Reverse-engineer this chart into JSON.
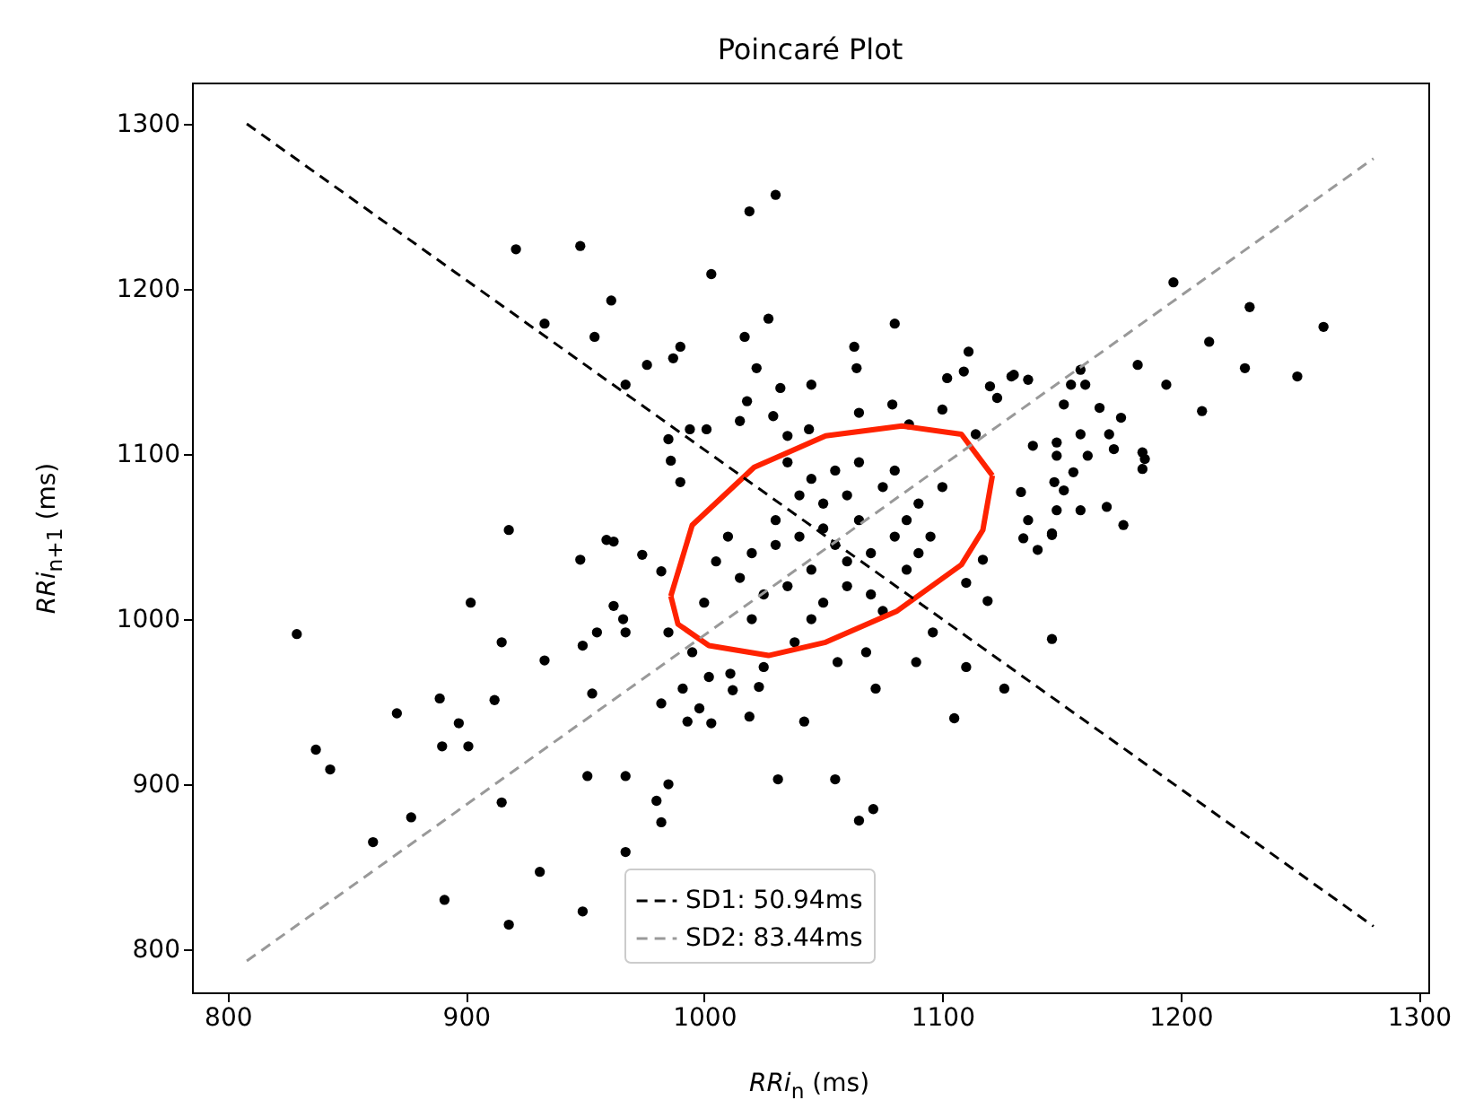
{
  "chart_data": {
    "type": "scatter",
    "title": "Poincaré Plot",
    "xlabel": "RRi$_{n}$ (ms)",
    "ylabel": "RRi$_{n+1}$ (ms)",
    "xlim": [
      785,
      1304
    ],
    "ylim": [
      774,
      1325
    ],
    "xticks": [
      800,
      900,
      1000,
      1100,
      1200,
      1300
    ],
    "yticks": [
      800,
      900,
      1000,
      1100,
      1200,
      1300
    ],
    "legend": "bottom",
    "series": [
      {
        "color": "#000000",
        "marker": "circle",
        "x": [
          829,
          837,
          843,
          861,
          877,
          871,
          889,
          897,
          890,
          901,
          912,
          915,
          902,
          933,
          949,
          955,
          948,
          959,
          918,
          953,
          951,
          915,
          931,
          891,
          918,
          949,
          921,
          948,
          933,
          954,
          961,
          1030,
          1019,
          1003,
          1027,
          1017,
          990,
          987,
          976,
          967,
          1080,
          1063,
          1064,
          1022,
          1045,
          1032,
          1111,
          1109,
          1102,
          1129,
          1120,
          1123,
          1100,
          1079,
          1065,
          1018,
          1015,
          1029,
          1001,
          994,
          985,
          986,
          990,
          1044,
          1035,
          1114,
          1086,
          1197,
          1229,
          1260,
          1212,
          1227,
          1249,
          1182,
          1194,
          1209,
          1158,
          1154,
          1160,
          1136,
          1130,
          1151,
          1166,
          1175,
          1170,
          1158,
          1138,
          1148,
          1148,
          1161,
          1172,
          1184,
          1185,
          1184,
          1155,
          1147,
          1151,
          1148,
          1158,
          1169,
          1176,
          1146,
          1136,
          1133,
          1146,
          1140,
          1134,
          1146,
          967,
          985,
          980,
          982,
          967,
          1031,
          1055,
          1071,
          1065,
          1042,
          1019,
          1003,
          993,
          998,
          982,
          991,
          1012,
          1023,
          1002,
          1011,
          1072,
          1105,
          1126,
          1110,
          1089,
          1068,
          1056,
          1038,
          1025,
          995,
          967,
          962,
          982,
          974,
          962,
          966,
          985,
          1119,
          1117,
          1096,
          1110,
          1020,
          1030,
          1040,
          1045,
          1050,
          1055,
          1060,
          1065,
          1070,
          1075,
          1080,
          1085,
          1090,
          1035,
          1025,
          1015,
          1045,
          1055,
          1065,
          1040,
          1050,
          1070,
          1080,
          1095,
          1100,
          1030,
          1010,
          1060,
          1075,
          1045,
          1035,
          1085,
          1020,
          1000,
          1005,
          1090,
          1060,
          1050
        ],
        "values": [
          991,
          921,
          909,
          865,
          880,
          943,
          952,
          937,
          923,
          923,
          951,
          986,
          1010,
          975,
          984,
          992,
          1036,
          1048,
          1054,
          955,
          905,
          889,
          847,
          830,
          815,
          823,
          1224,
          1226,
          1179,
          1171,
          1193,
          1257,
          1247,
          1209,
          1182,
          1171,
          1165,
          1158,
          1154,
          1142,
          1179,
          1165,
          1152,
          1152,
          1142,
          1140,
          1162,
          1150,
          1146,
          1147,
          1141,
          1134,
          1127,
          1130,
          1125,
          1132,
          1120,
          1123,
          1115,
          1115,
          1109,
          1096,
          1083,
          1115,
          1111,
          1112,
          1118,
          1204,
          1189,
          1177,
          1168,
          1152,
          1147,
          1154,
          1142,
          1126,
          1151,
          1142,
          1142,
          1145,
          1148,
          1130,
          1128,
          1122,
          1112,
          1112,
          1105,
          1107,
          1099,
          1099,
          1103,
          1101,
          1097,
          1091,
          1089,
          1083,
          1078,
          1066,
          1066,
          1068,
          1057,
          1052,
          1060,
          1077,
          988,
          1042,
          1049,
          1051,
          905,
          900,
          890,
          877,
          859,
          903,
          903,
          885,
          878,
          938,
          941,
          937,
          938,
          946,
          949,
          958,
          957,
          959,
          965,
          967,
          958,
          940,
          958,
          971,
          974,
          980,
          974,
          986,
          971,
          980,
          992,
          1008,
          1029,
          1039,
          1047,
          1000,
          992,
          1011,
          1036,
          992,
          1022,
          1040,
          1060,
          1050,
          1030,
          1070,
          1045,
          1020,
          1060,
          1040,
          1080,
          1050,
          1030,
          1070,
          1020,
          1015,
          1025,
          1085,
          1090,
          1095,
          1075,
          1010,
          1015,
          1090,
          1050,
          1080,
          1045,
          1050,
          1035,
          1005,
          1000,
          1095,
          1060,
          1000,
          1010,
          1035,
          1040,
          1075,
          1055
        ]
      },
      {
        "type": "line",
        "name": "SD1: 50.94ms",
        "color": "#000000",
        "line_style": "dashed",
        "x": [
          808,
          1281
        ],
        "values": [
          1300,
          814
        ]
      },
      {
        "type": "line",
        "name": "SD2: 83.44ms",
        "color": "#999999",
        "line_style": "dashed",
        "x": [
          808,
          1281
        ],
        "values": [
          793,
          1279
        ]
      },
      {
        "type": "line",
        "color": "#ff2200",
        "line_style": "solid",
        "x": [
          986,
          995,
          1021,
          1051,
          1083,
          1108,
          1121
        ],
        "values": [
          1014,
          1057,
          1092,
          1111,
          1117,
          1112,
          1087
        ]
      },
      {
        "type": "line",
        "color": "#ff2200",
        "line_style": "solid",
        "x": [
          986,
          989,
          1002,
          1027,
          1051,
          1081,
          1108,
          1117,
          1121
        ],
        "values": [
          1014,
          997,
          984,
          978,
          986,
          1005,
          1033,
          1054,
          1087
        ]
      }
    ]
  }
}
